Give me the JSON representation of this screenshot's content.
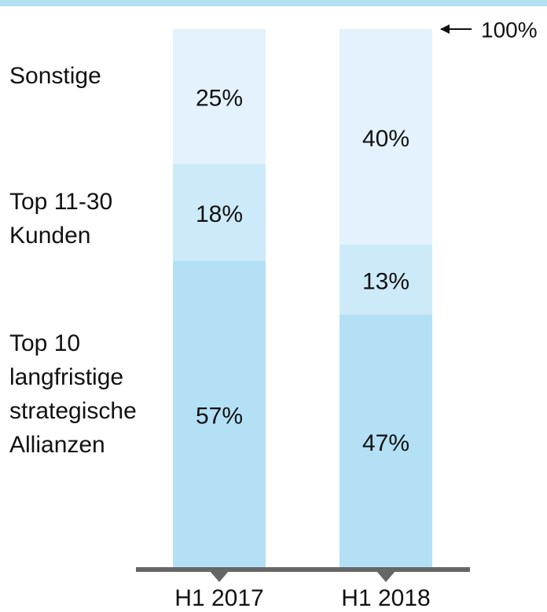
{
  "chart_data": {
    "type": "stacked_bar",
    "categories": [
      "H1 2017",
      "H1 2018"
    ],
    "series": [
      {
        "name": "Top 10 langfristige strategische Allianzen",
        "color": "#b3e0f5",
        "values": [
          57,
          47
        ],
        "value_labels": [
          "57%",
          "47%"
        ]
      },
      {
        "name": "Top 11-30 Kunden",
        "color": "#cdeaf8",
        "values": [
          18,
          13
        ],
        "value_labels": [
          "18%",
          "13%"
        ]
      },
      {
        "name": "Sonstige",
        "color": "#e3f2fc",
        "values": [
          25,
          40
        ],
        "value_labels": [
          "25%",
          "40%"
        ]
      }
    ],
    "ylim": [
      0,
      100
    ],
    "annotation": "100%"
  }
}
